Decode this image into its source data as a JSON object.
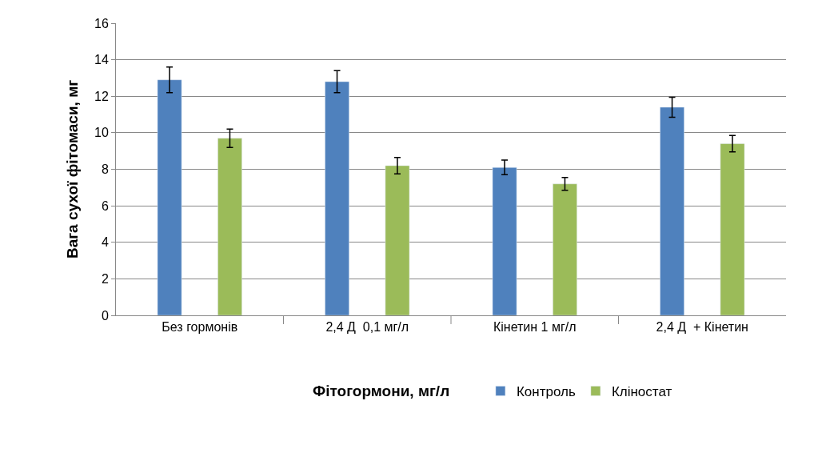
{
  "chart_data": {
    "type": "bar",
    "xlabel": "Фітогормони, мг/л",
    "ylabel": "Вага сухої фітомаси, мг",
    "categories": [
      "Без гормонів",
      "2,4 Д  0,1 мг/л",
      "Кінетин 1 мг/л",
      "2,4 Д  + Кінетин"
    ],
    "series": [
      {
        "name": "Контроль",
        "color": "#4f81bd",
        "values": [
          12.9,
          12.8,
          8.1,
          11.4
        ],
        "errors": [
          0.7,
          0.6,
          0.4,
          0.55
        ]
      },
      {
        "name": "Кліностат",
        "color": "#9bbb59",
        "values": [
          9.7,
          8.2,
          7.2,
          9.4
        ],
        "errors": [
          0.5,
          0.45,
          0.35,
          0.45
        ]
      }
    ],
    "ylim": [
      0,
      16
    ],
    "yticks": [
      0,
      2,
      4,
      6,
      8,
      10,
      12,
      14,
      16
    ],
    "grid": "y",
    "legend": "bottom"
  }
}
